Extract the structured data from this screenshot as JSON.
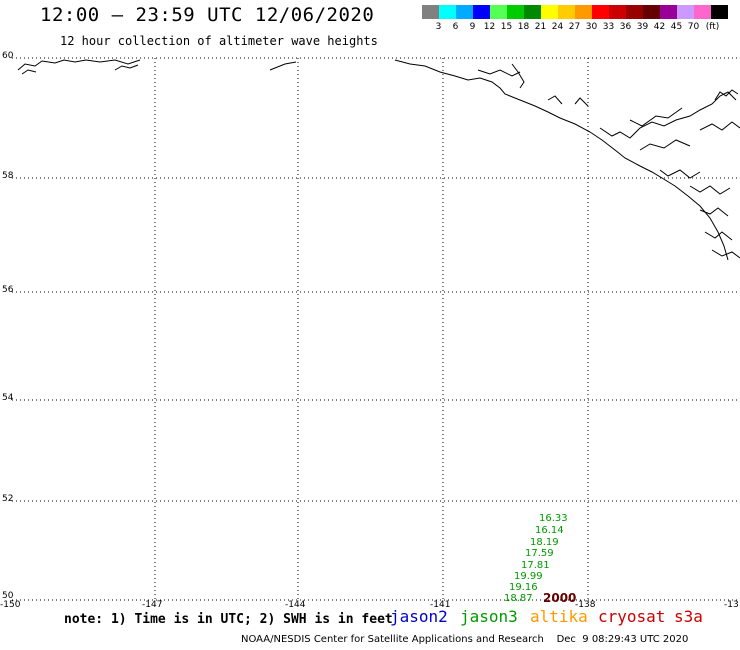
{
  "header": {
    "title": "12:00 – 23:59 UTC 12/06/2020",
    "subtitle": "12 hour collection of altimeter wave heights"
  },
  "color_scale": {
    "colors": [
      "#808080",
      "#00ffff",
      "#00aaff",
      "#0000ff",
      "#55ff55",
      "#00cc00",
      "#008800",
      "#ffff00",
      "#ffcc00",
      "#ff9900",
      "#ff0000",
      "#cc0000",
      "#990000",
      "#660000",
      "#990099",
      "#cc99ff",
      "#ff66cc",
      "#000000"
    ],
    "labels": [
      "3",
      "6",
      "9",
      "12",
      "15",
      "18",
      "21",
      "24",
      "27",
      "30",
      "33",
      "36",
      "39",
      "42",
      "45",
      "70",
      "(ft)"
    ]
  },
  "map": {
    "latitudes": [
      "60",
      "58",
      "56",
      "54",
      "52",
      "50"
    ],
    "longitudes": [
      "-150",
      "-147",
      "-144",
      "-141",
      "-138",
      "-13"
    ],
    "lat_range": [
      50,
      60
    ],
    "lon_range": [
      -150,
      -135
    ]
  },
  "observations": {
    "jason3_color": "#009900",
    "values": [
      "16.33",
      "16.14",
      "18.19",
      "17.59",
      "17.81",
      "19.99",
      "19.16",
      "18.87"
    ],
    "time_label": "2000",
    "time_label_color": "#660000"
  },
  "footer": {
    "note": "note: 1) Time is in UTC; 2) SWH is in feet",
    "satellites": [
      {
        "name": "jason2",
        "color": "#0000cc"
      },
      {
        "name": "jason3",
        "color": "#009900"
      },
      {
        "name": "altika",
        "color": "#ff9900"
      },
      {
        "name": "cryosat",
        "color": "#cc0000"
      },
      {
        "name": "s3a",
        "color": "#cc0000"
      }
    ],
    "credit": "NOAA/NESDIS Center for Satellite Applications and Research    Dec  9 08:29:43 UTC 2020"
  }
}
